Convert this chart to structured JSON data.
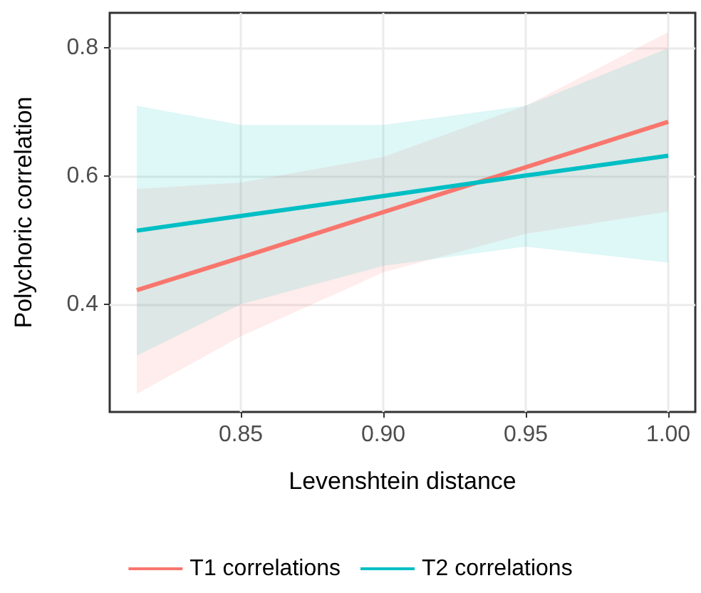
{
  "chart_data": {
    "type": "line",
    "xlabel": "Levenshtein distance",
    "ylabel": "Polychoric correlation",
    "x": [
      0.8135,
      0.85,
      0.9,
      0.95,
      1.0
    ],
    "series": [
      {
        "name": "T1 correlations",
        "color": "#f8766d",
        "values": [
          0.422,
          0.473,
          0.544,
          0.614,
          0.685
        ],
        "lower": [
          0.26,
          0.35,
          0.45,
          0.51,
          0.545
        ],
        "upper": [
          0.58,
          0.59,
          0.63,
          0.71,
          0.825
        ]
      },
      {
        "name": "T2 correlations",
        "color": "#00bfc4",
        "values": [
          0.515,
          0.538,
          0.569,
          0.601,
          0.632
        ],
        "lower": [
          0.32,
          0.4,
          0.46,
          0.49,
          0.465
        ],
        "upper": [
          0.71,
          0.68,
          0.68,
          0.71,
          0.8
        ]
      }
    ],
    "xlim": [
      0.804,
      1.0095
    ],
    "xticks": [
      {
        "value": 0.85,
        "label": "0.85"
      },
      {
        "value": 0.9,
        "label": "0.90"
      },
      {
        "value": 0.95,
        "label": "0.95"
      },
      {
        "value": 1.0,
        "label": "1.00"
      }
    ],
    "ylim": [
      0.232,
      0.855
    ],
    "yticks": [
      0.4,
      0.6,
      0.8
    ],
    "grid": true,
    "legend": "bottom",
    "marker": "none",
    "line_style": "solid"
  }
}
